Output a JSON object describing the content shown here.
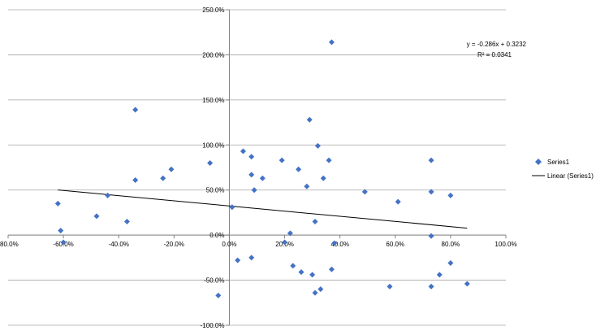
{
  "chart_data": {
    "type": "scatter",
    "title": "",
    "xlabel": "",
    "ylabel": "",
    "xlim": [
      -0.8,
      1.0
    ],
    "ylim": [
      -1.0,
      2.5
    ],
    "x_ticks": [
      -0.8,
      -0.6,
      -0.4,
      -0.2,
      0.0,
      0.2,
      0.4,
      0.6,
      0.8,
      1.0
    ],
    "y_ticks": [
      -1.0,
      -0.5,
      0.0,
      0.5,
      1.0,
      1.5,
      2.0,
      2.5
    ],
    "x_tick_labels": [
      "-80.0%",
      "-60.0%",
      "-40.0%",
      "-20.0%",
      "0.0%",
      "20.0%",
      "40.0%",
      "60.0%",
      "80.0%",
      "100.0%"
    ],
    "y_tick_labels": [
      "-100.0%",
      "-50.0%",
      "0.0%",
      "50.0%",
      "100.0%",
      "150.0%",
      "200.0%",
      "250.0%"
    ],
    "grid": "horizontal",
    "legend_position": "right",
    "marker_color": "#4472C4",
    "trendline_color": "#000000",
    "series": [
      {
        "name": "Series1",
        "points": [
          {
            "x": -0.62,
            "y": 0.35
          },
          {
            "x": -0.61,
            "y": 0.05
          },
          {
            "x": -0.6,
            "y": -0.08
          },
          {
            "x": -0.48,
            "y": 0.21
          },
          {
            "x": -0.44,
            "y": 0.44
          },
          {
            "x": -0.37,
            "y": 0.15
          },
          {
            "x": -0.34,
            "y": 1.39
          },
          {
            "x": -0.34,
            "y": 0.61
          },
          {
            "x": -0.24,
            "y": 0.63
          },
          {
            "x": -0.21,
            "y": 0.73
          },
          {
            "x": -0.07,
            "y": 0.8
          },
          {
            "x": 0.01,
            "y": 0.31
          },
          {
            "x": 0.03,
            "y": -0.28
          },
          {
            "x": 0.05,
            "y": 0.93
          },
          {
            "x": 0.08,
            "y": 0.67
          },
          {
            "x": 0.08,
            "y": -0.25
          },
          {
            "x": 0.08,
            "y": 0.87
          },
          {
            "x": 0.09,
            "y": 0.5
          },
          {
            "x": 0.12,
            "y": 0.63
          },
          {
            "x": 0.19,
            "y": 0.83
          },
          {
            "x": 0.2,
            "y": -0.08
          },
          {
            "x": 0.22,
            "y": 0.02
          },
          {
            "x": 0.23,
            "y": -0.34
          },
          {
            "x": 0.25,
            "y": 0.73
          },
          {
            "x": 0.26,
            "y": -0.41
          },
          {
            "x": 0.28,
            "y": 0.54
          },
          {
            "x": 0.29,
            "y": 1.28
          },
          {
            "x": 0.3,
            "y": -0.44
          },
          {
            "x": 0.31,
            "y": -0.64
          },
          {
            "x": 0.31,
            "y": 0.15
          },
          {
            "x": 0.32,
            "y": 0.99
          },
          {
            "x": 0.33,
            "y": -0.6
          },
          {
            "x": 0.34,
            "y": 0.63
          },
          {
            "x": 0.36,
            "y": 0.83
          },
          {
            "x": 0.37,
            "y": -0.38
          },
          {
            "x": 0.37,
            "y": 2.14
          },
          {
            "x": 0.38,
            "y": -0.09
          },
          {
            "x": 0.49,
            "y": 0.48
          },
          {
            "x": 0.58,
            "y": -0.57
          },
          {
            "x": 0.61,
            "y": 0.37
          },
          {
            "x": 0.73,
            "y": 0.83
          },
          {
            "x": 0.73,
            "y": 0.48
          },
          {
            "x": 0.73,
            "y": -0.01
          },
          {
            "x": 0.73,
            "y": -0.57
          },
          {
            "x": 0.76,
            "y": -0.44
          },
          {
            "x": 0.8,
            "y": 0.44
          },
          {
            "x": 0.8,
            "y": -0.31
          },
          {
            "x": 0.86,
            "y": -0.54
          },
          {
            "x": -0.04,
            "y": -0.67
          }
        ]
      }
    ],
    "trendline": {
      "name": "Linear (Series1)",
      "slope": -0.286,
      "intercept": 0.3232,
      "x_range": [
        -0.62,
        0.86
      ],
      "equation": "y = -0.286x + 0.3232",
      "r_squared": "R² = 0.0341"
    }
  }
}
